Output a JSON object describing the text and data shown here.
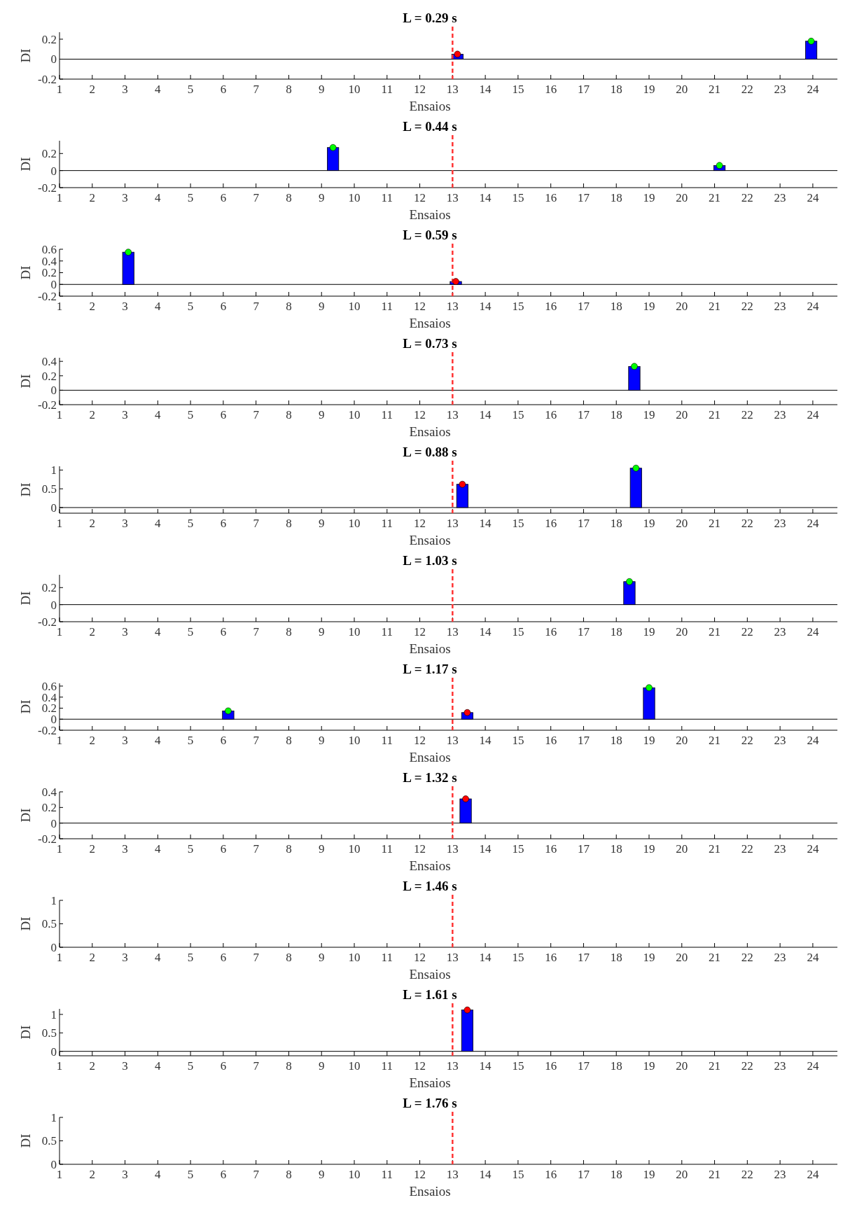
{
  "chart_data": [
    {
      "type": "bar",
      "title": "L = 0.29 s",
      "xlabel": "Ensaios",
      "ylabel": "DI",
      "xlim": [
        1,
        24.9
      ],
      "xticks": [
        1,
        2,
        3,
        4,
        5,
        6,
        7,
        8,
        9,
        10,
        11,
        12,
        13,
        14,
        15,
        16,
        17,
        18,
        19,
        20,
        21,
        22,
        23,
        24
      ],
      "ylim": [
        -0.2,
        0.27
      ],
      "yticks": [
        -0.2,
        0,
        0.2
      ],
      "ref_lines": [
        {
          "axis": "x",
          "value": 13,
          "color": "#ff3333",
          "line_style": "dashed"
        }
      ],
      "series": [
        {
          "x": [
            13.15,
            23.95
          ],
          "values": [
            0.05,
            0.18
          ],
          "color": "#0000ff"
        },
        {
          "type": "scatter",
          "x": [
            23.95
          ],
          "values": [
            0.18
          ],
          "color": "#00ff00",
          "marker": "circle"
        },
        {
          "type": "scatter",
          "x": [
            13.15
          ],
          "values": [
            0.05
          ],
          "color": "#ff0000",
          "marker": "circle"
        }
      ]
    },
    {
      "type": "bar",
      "title": "L = 0.44 s",
      "xlabel": "Ensaios",
      "ylabel": "DI",
      "xlim": [
        1,
        24.9
      ],
      "xticks": [
        1,
        2,
        3,
        4,
        5,
        6,
        7,
        8,
        9,
        10,
        11,
        12,
        13,
        14,
        15,
        16,
        17,
        18,
        19,
        20,
        21,
        22,
        23,
        24
      ],
      "ylim": [
        -0.2,
        0.35
      ],
      "yticks": [
        -0.2,
        0,
        0.2
      ],
      "ref_lines": [
        {
          "axis": "x",
          "value": 13,
          "color": "#ff3333",
          "line_style": "dashed"
        }
      ],
      "series": [
        {
          "x": [
            9.35,
            21.15
          ],
          "values": [
            0.27,
            0.06
          ],
          "color": "#0000ff"
        },
        {
          "type": "scatter",
          "x": [
            9.35,
            21.15
          ],
          "values": [
            0.27,
            0.06
          ],
          "color": "#00ff00",
          "marker": "circle"
        }
      ]
    },
    {
      "type": "bar",
      "title": "L = 0.59 s",
      "xlabel": "Ensaios",
      "ylabel": "DI",
      "xlim": [
        1,
        24.9
      ],
      "xticks": [
        1,
        2,
        3,
        4,
        5,
        6,
        7,
        8,
        9,
        10,
        11,
        12,
        13,
        14,
        15,
        16,
        17,
        18,
        19,
        20,
        21,
        22,
        23,
        24
      ],
      "ylim": [
        -0.2,
        0.6
      ],
      "yticks": [
        -0.2,
        0,
        0.2,
        0.4,
        0.6
      ],
      "ref_lines": [
        {
          "axis": "x",
          "value": 13,
          "color": "#ff3333",
          "line_style": "dashed"
        }
      ],
      "series": [
        {
          "x": [
            3.1,
            13.1
          ],
          "values": [
            0.55,
            0.05
          ],
          "color": "#0000ff"
        },
        {
          "type": "scatter",
          "x": [
            3.1
          ],
          "values": [
            0.55
          ],
          "color": "#00ff00",
          "marker": "circle"
        },
        {
          "type": "scatter",
          "x": [
            13.1
          ],
          "values": [
            0.05
          ],
          "color": "#ff0000",
          "marker": "circle"
        }
      ]
    },
    {
      "type": "bar",
      "title": "L = 0.73 s",
      "xlabel": "Ensaios",
      "ylabel": "DI",
      "xlim": [
        1,
        24.9
      ],
      "xticks": [
        1,
        2,
        3,
        4,
        5,
        6,
        7,
        8,
        9,
        10,
        11,
        12,
        13,
        14,
        15,
        16,
        17,
        18,
        19,
        20,
        21,
        22,
        23,
        24
      ],
      "ylim": [
        -0.2,
        0.45
      ],
      "yticks": [
        -0.2,
        0,
        0.2,
        0.4
      ],
      "ref_lines": [
        {
          "axis": "x",
          "value": 13,
          "color": "#ff3333",
          "line_style": "dashed"
        }
      ],
      "series": [
        {
          "x": [
            18.55
          ],
          "values": [
            0.33
          ],
          "color": "#0000ff"
        },
        {
          "type": "scatter",
          "x": [
            18.55
          ],
          "values": [
            0.33
          ],
          "color": "#00ff00",
          "marker": "circle"
        }
      ]
    },
    {
      "type": "bar",
      "title": "L = 0.88 s",
      "xlabel": "Ensaios",
      "ylabel": "DI",
      "xlim": [
        1,
        24.9
      ],
      "xticks": [
        1,
        2,
        3,
        4,
        5,
        6,
        7,
        8,
        9,
        10,
        11,
        12,
        13,
        14,
        15,
        16,
        17,
        18,
        19,
        20,
        21,
        22,
        23,
        24
      ],
      "ylim": [
        -0.15,
        1.1
      ],
      "yticks": [
        0,
        0.5,
        1
      ],
      "ref_lines": [
        {
          "axis": "x",
          "value": 13,
          "color": "#ff3333",
          "line_style": "dashed"
        }
      ],
      "series": [
        {
          "x": [
            13.3,
            18.6
          ],
          "values": [
            0.62,
            1.05
          ],
          "color": "#0000ff"
        },
        {
          "type": "scatter",
          "x": [
            18.6
          ],
          "values": [
            1.05
          ],
          "color": "#00ff00",
          "marker": "circle"
        },
        {
          "type": "scatter",
          "x": [
            13.3
          ],
          "values": [
            0.62
          ],
          "color": "#ff0000",
          "marker": "circle"
        }
      ]
    },
    {
      "type": "bar",
      "title": "L = 1.03 s",
      "xlabel": "Ensaios",
      "ylabel": "DI",
      "xlim": [
        1,
        24.9
      ],
      "xticks": [
        1,
        2,
        3,
        4,
        5,
        6,
        7,
        8,
        9,
        10,
        11,
        12,
        13,
        14,
        15,
        16,
        17,
        18,
        19,
        20,
        21,
        22,
        23,
        24
      ],
      "ylim": [
        -0.2,
        0.35
      ],
      "yticks": [
        -0.2,
        0,
        0.2
      ],
      "ref_lines": [
        {
          "axis": "x",
          "value": 13,
          "color": "#ff3333",
          "line_style": "dashed"
        }
      ],
      "series": [
        {
          "x": [
            18.4
          ],
          "values": [
            0.27
          ],
          "color": "#0000ff"
        },
        {
          "type": "scatter",
          "x": [
            18.4
          ],
          "values": [
            0.27
          ],
          "color": "#00ff00",
          "marker": "circle"
        }
      ]
    },
    {
      "type": "bar",
      "title": "L = 1.17 s",
      "xlabel": "Ensaios",
      "ylabel": "DI",
      "xlim": [
        1,
        24.9
      ],
      "xticks": [
        1,
        2,
        3,
        4,
        5,
        6,
        7,
        8,
        9,
        10,
        11,
        12,
        13,
        14,
        15,
        16,
        17,
        18,
        19,
        20,
        21,
        22,
        23,
        24
      ],
      "ylim": [
        -0.2,
        0.65
      ],
      "yticks": [
        -0.2,
        0,
        0.2,
        0.4,
        0.6
      ],
      "ref_lines": [
        {
          "axis": "x",
          "value": 13,
          "color": "#ff3333",
          "line_style": "dashed"
        }
      ],
      "series": [
        {
          "x": [
            6.15,
            13.45,
            19.0
          ],
          "values": [
            0.15,
            0.12,
            0.57
          ],
          "color": "#0000ff"
        },
        {
          "type": "scatter",
          "x": [
            6.15,
            19.0
          ],
          "values": [
            0.15,
            0.57
          ],
          "color": "#00ff00",
          "marker": "circle"
        },
        {
          "type": "scatter",
          "x": [
            13.45
          ],
          "values": [
            0.12
          ],
          "color": "#ff0000",
          "marker": "circle"
        }
      ]
    },
    {
      "type": "bar",
      "title": "L = 1.32 s",
      "xlabel": "Ensaios",
      "ylabel": "DI",
      "xlim": [
        1,
        24.9
      ],
      "xticks": [
        1,
        2,
        3,
        4,
        5,
        6,
        7,
        8,
        9,
        10,
        11,
        12,
        13,
        14,
        15,
        16,
        17,
        18,
        19,
        20,
        21,
        22,
        23,
        24
      ],
      "ylim": [
        -0.2,
        0.4
      ],
      "yticks": [
        -0.2,
        0,
        0.2,
        0.4
      ],
      "ref_lines": [
        {
          "axis": "x",
          "value": 13,
          "color": "#ff3333",
          "line_style": "dashed"
        }
      ],
      "series": [
        {
          "x": [
            13.4
          ],
          "values": [
            0.31
          ],
          "color": "#0000ff"
        },
        {
          "type": "scatter",
          "x": [
            13.4
          ],
          "values": [
            0.31
          ],
          "color": "#ff0000",
          "marker": "circle"
        }
      ]
    },
    {
      "type": "bar",
      "title": "L = 1.46 s",
      "xlabel": "Ensaios",
      "ylabel": "DI",
      "xlim": [
        1,
        24.9
      ],
      "xticks": [
        1,
        2,
        3,
        4,
        5,
        6,
        7,
        8,
        9,
        10,
        11,
        12,
        13,
        14,
        15,
        16,
        17,
        18,
        19,
        20,
        21,
        22,
        23,
        24
      ],
      "ylim": [
        0,
        1
      ],
      "yticks": [
        0,
        0.5,
        1
      ],
      "ref_lines": [
        {
          "axis": "x",
          "value": 13,
          "color": "#ff3333",
          "line_style": "dashed"
        }
      ]
    },
    {
      "type": "bar",
      "title": "L = 1.61 s",
      "xlabel": "Ensaios",
      "ylabel": "DI",
      "xlim": [
        1,
        24.9
      ],
      "xticks": [
        1,
        2,
        3,
        4,
        5,
        6,
        7,
        8,
        9,
        10,
        11,
        12,
        13,
        14,
        15,
        16,
        17,
        18,
        19,
        20,
        21,
        22,
        23,
        24
      ],
      "ylim": [
        -0.12,
        1.15
      ],
      "yticks": [
        0,
        0.5,
        1
      ],
      "ref_lines": [
        {
          "axis": "x",
          "value": 13,
          "color": "#ff3333",
          "line_style": "dashed"
        }
      ],
      "series": [
        {
          "x": [
            13.45
          ],
          "values": [
            1.12
          ],
          "color": "#0000ff"
        },
        {
          "type": "scatter",
          "x": [
            13.45
          ],
          "values": [
            1.12
          ],
          "color": "#ff0000",
          "marker": "circle"
        }
      ]
    },
    {
      "type": "bar",
      "title": "L = 1.76 s",
      "xlabel": "Ensaios",
      "ylabel": "DI",
      "xlim": [
        1,
        24.9
      ],
      "xticks": [
        1,
        2,
        3,
        4,
        5,
        6,
        7,
        8,
        9,
        10,
        11,
        12,
        13,
        14,
        15,
        16,
        17,
        18,
        19,
        20,
        21,
        22,
        23,
        24
      ],
      "ylim": [
        0,
        1
      ],
      "yticks": [
        0,
        0.5,
        1
      ],
      "ref_lines": [
        {
          "axis": "x",
          "value": 13,
          "color": "#ff3333",
          "line_style": "dashed"
        }
      ]
    }
  ]
}
